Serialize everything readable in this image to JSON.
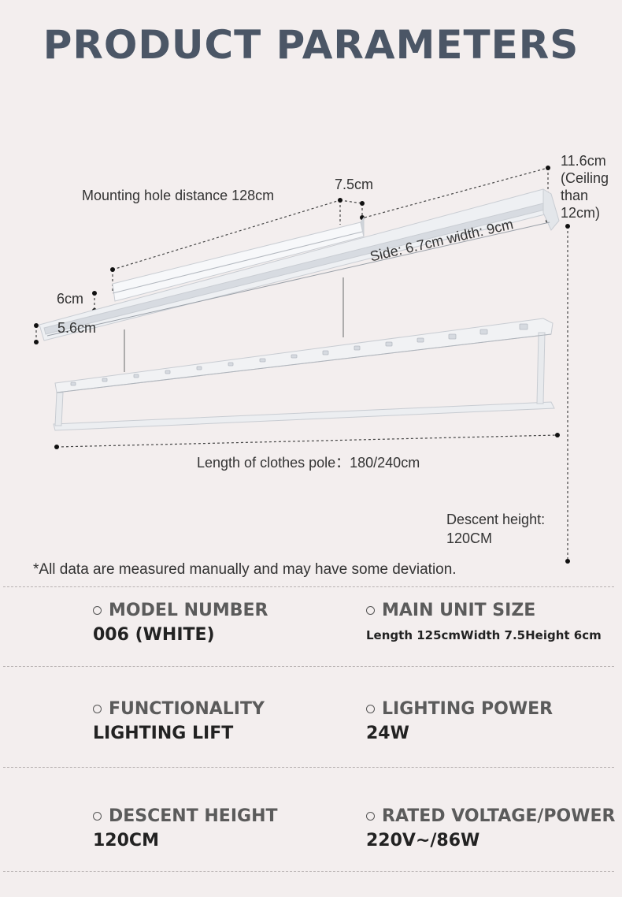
{
  "title": "PRODUCT PARAMETERS",
  "diagram": {
    "mounting_hole": "Mounting hole distance 128cm",
    "unit_width": "7.5cm",
    "height_note_1": "11.6cm",
    "height_note_2": "(Ceiling",
    "height_note_3": "than",
    "height_note_4": "12cm)",
    "side_width": "Side: 6.7cm width: 9cm",
    "dim_6cm": "6cm",
    "dim_5_6cm": "5.6cm",
    "pole_length": "Length of clothes pole：180/240cm",
    "descent_label": "Descent height:",
    "descent_value": "120CM"
  },
  "note": "*All data are measured manually and may have some deviation.",
  "specs": [
    {
      "label": "MODEL NUMBER",
      "value": "006 (WHITE)"
    },
    {
      "label": "MAIN UNIT SIZE",
      "value": "Length 125cmWidth 7.5Height 6cm"
    },
    {
      "label": "FUNCTIONALITY",
      "value": "LIGHTING LIFT"
    },
    {
      "label": "LIGHTING POWER",
      "value": "24W"
    },
    {
      "label": "DESCENT HEIGHT",
      "value": "120CM"
    },
    {
      "label": "RATED VOLTAGE/POWER",
      "value": "220V~/86W"
    }
  ]
}
